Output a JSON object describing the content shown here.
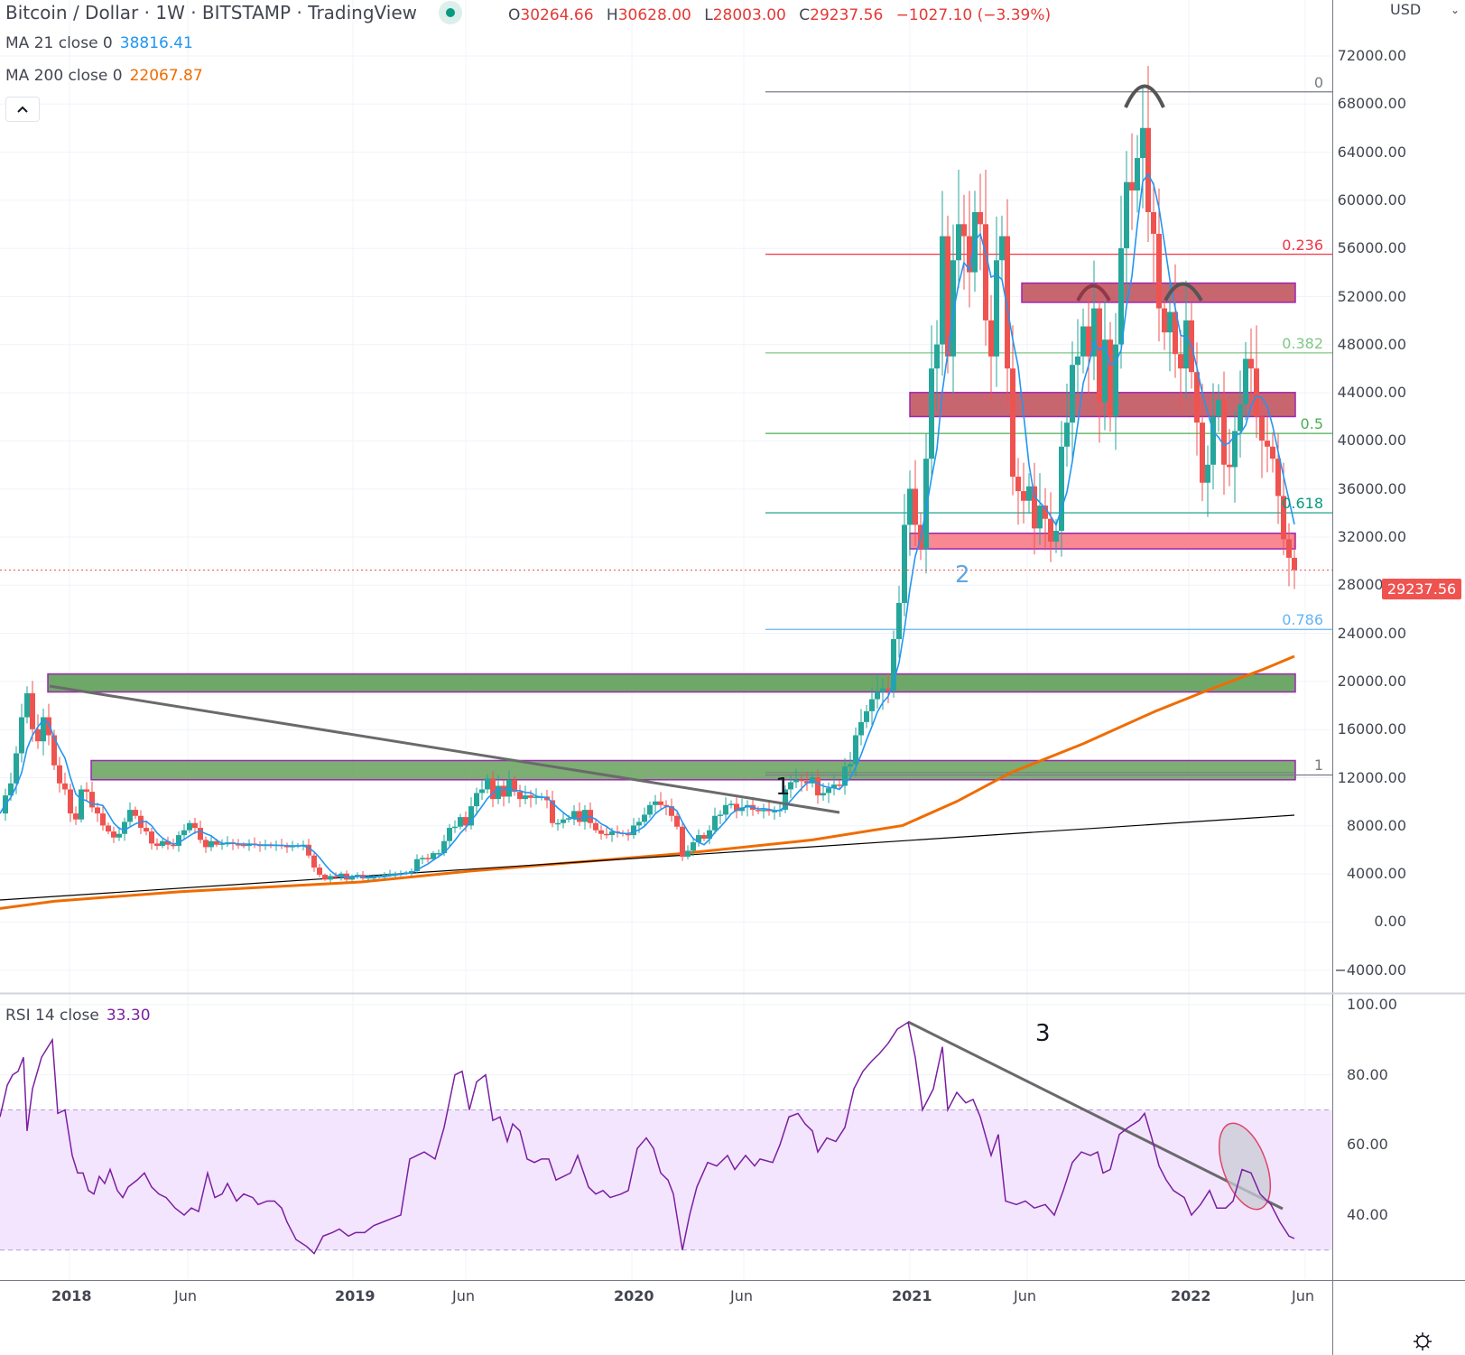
{
  "header": {
    "title": "Bitcoin / Dollar · 1W · BITSTAMP · TradingView",
    "status_dot_color": "#089981",
    "ohlc": {
      "open_label": "O",
      "open": "30264.66",
      "high_label": "H",
      "high": "30628.00",
      "low_label": "L",
      "low": "28003.00",
      "close_label": "C",
      "close": "29237.56",
      "change": "−1027.10 (−3.39%)"
    }
  },
  "indicators": {
    "ma21": {
      "label": "MA 21 close 0",
      "value": "38816.41",
      "color": "#2196f3"
    },
    "ma200": {
      "label": "MA 200 close 0",
      "value": "22067.87",
      "color": "#ef6c00"
    },
    "rsi": {
      "label": "RSI 14 close",
      "value": "33.30",
      "color": "#7b1fa2"
    }
  },
  "collapse_button": {
    "icon": "chevron-up-icon"
  },
  "price_axis": {
    "currency": "USD",
    "ticks": [
      "72000.00",
      "68000.00",
      "64000.00",
      "60000.00",
      "56000.00",
      "52000.00",
      "48000.00",
      "44000.00",
      "40000.00",
      "36000.00",
      "32000.00",
      "28000.00",
      "24000.00",
      "20000.00",
      "16000.00",
      "12000.00",
      "8000.00",
      "4000.00",
      "0.00",
      "−4000.00"
    ],
    "last_price_label": "29237.56",
    "last_price_color": "#ef5350"
  },
  "rsi_axis": {
    "ticks": [
      "100.00",
      "80.00",
      "60.00",
      "40.00"
    ]
  },
  "time_axis": {
    "ticks": [
      "2018",
      "Jun",
      "2019",
      "Jun",
      "2020",
      "Jun",
      "2021",
      "Jun",
      "2022",
      "Jun"
    ]
  },
  "fib_levels": [
    {
      "label": "0",
      "price": 69000,
      "color": "#787b86"
    },
    {
      "label": "0.236",
      "price": 55500,
      "color": "#f23645"
    },
    {
      "label": "0.382",
      "price": 47300,
      "color": "#81c784"
    },
    {
      "label": "0.5",
      "price": 40600,
      "color": "#4caf50"
    },
    {
      "label": "0.618",
      "price": 34000,
      "color": "#089981"
    },
    {
      "label": "0.786",
      "price": 24300,
      "color": "#64b5f6"
    },
    {
      "label": "1",
      "price": 12200,
      "color": "#787b86"
    }
  ],
  "annotations": {
    "label_1": "1",
    "label_2": "2",
    "label_3": "3"
  },
  "chart_data": [
    {
      "type": "candlestick",
      "title": "Bitcoin / Dollar · 1W · BITSTAMP",
      "ylabel": "USD",
      "ylim": [
        -6000,
        76000
      ],
      "x_ticks": [
        "2018",
        "Jun",
        "2019",
        "Jun",
        "2020",
        "Jun",
        "2021",
        "Jun",
        "2022",
        "Jun"
      ],
      "last_ohlc": {
        "open": 30264.66,
        "high": 30628.0,
        "low": 28003.0,
        "close": 29237.56,
        "change": -1027.1,
        "change_pct": -3.39
      },
      "key_points": [
        {
          "date": "2017-12",
          "high": 19700
        },
        {
          "date": "2018-12",
          "low": 3200
        },
        {
          "date": "2019-06",
          "high": 13800
        },
        {
          "date": "2020-03",
          "low": 3900
        },
        {
          "date": "2021-04",
          "high": 64800
        },
        {
          "date": "2021-07",
          "low": 28800
        },
        {
          "date": "2021-11",
          "high": 69000
        },
        {
          "date": "2022-05",
          "low": 26000
        },
        {
          "date": "2022-05",
          "close": 29237.56
        }
      ],
      "series": [
        {
          "name": "MA 21 close",
          "last": 38816.41,
          "color": "#2196f3"
        },
        {
          "name": "MA 200 close",
          "last": 22067.87,
          "color": "#ef6c00"
        }
      ],
      "zones": [
        {
          "name": "resistance 52k",
          "from": 51500,
          "to": 53100,
          "color": "#c2555f"
        },
        {
          "name": "resistance 43k",
          "from": 42000,
          "to": 44000,
          "color": "#c2555f"
        },
        {
          "name": "support 31-32k",
          "from": 31000,
          "to": 32300,
          "color": "#f77b85"
        },
        {
          "name": "support 19-20k",
          "from": 19100,
          "to": 20600,
          "color": "#5e9e58"
        },
        {
          "name": "support 12-13k",
          "from": 11800,
          "to": 13400,
          "color": "#6fa565"
        }
      ],
      "fib_retracement": {
        "0": 69000,
        "0.236": 55500,
        "0.382": 47300,
        "0.5": 40600,
        "0.618": 34000,
        "0.786": 24300,
        "1": 12200
      }
    },
    {
      "type": "line",
      "title": "RSI 14 close",
      "ylim": [
        25,
        100
      ],
      "bands": {
        "upper": 70,
        "lower": 30
      },
      "last": 33.3,
      "color": "#7b1fa2",
      "key_points": [
        {
          "date": "2017-12",
          "value": 90
        },
        {
          "date": "2018-12",
          "value": 28
        },
        {
          "date": "2019-06",
          "value": 80
        },
        {
          "date": "2020-03",
          "value": 33
        },
        {
          "date": "2021-01",
          "value": 95
        },
        {
          "date": "2021-11",
          "value": 69
        },
        {
          "date": "2022-04",
          "value": 53
        },
        {
          "date": "2022-05",
          "value": 33.3
        }
      ],
      "x_ticks": [
        "2018",
        "Jun",
        "2019",
        "Jun",
        "2020",
        "Jun",
        "2021",
        "Jun",
        "2022",
        "Jun"
      ]
    }
  ],
  "colors": {
    "up": "#26a69a",
    "down": "#ef5350",
    "grid": "#f0f3fa",
    "axis_border": "#787b86",
    "rsi_band_fill": "#f3e5fd",
    "trendline": "#6a6a6a"
  }
}
